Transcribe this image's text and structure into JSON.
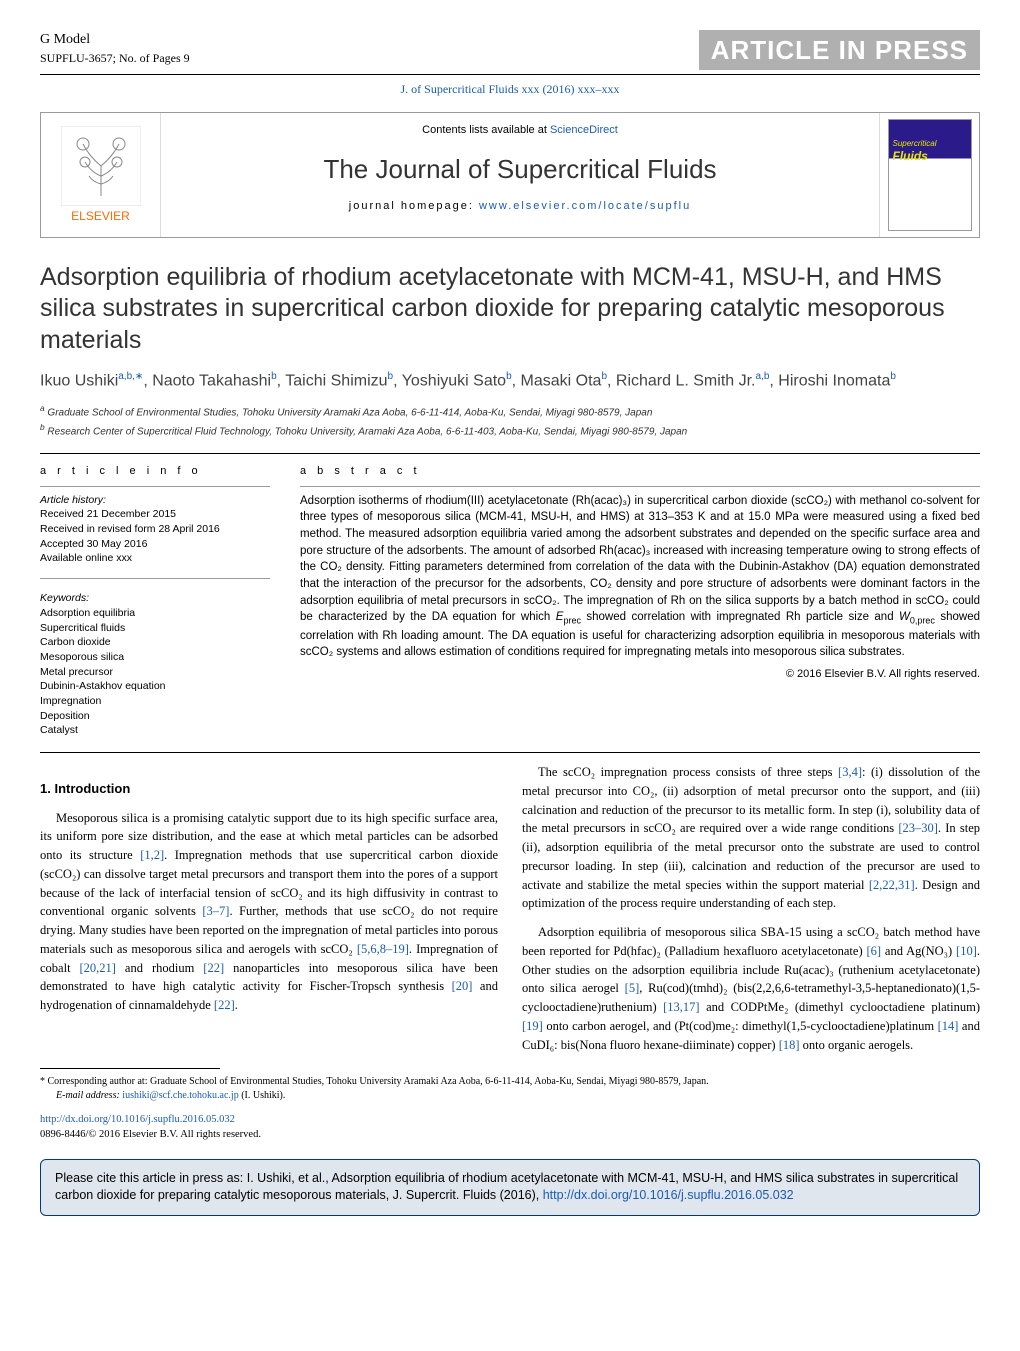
{
  "topbar": {
    "gmodel": "G Model",
    "ref": "SUPFLU-3657;   No. of Pages 9",
    "press": "ARTICLE IN PRESS"
  },
  "ref_line": "J. of Supercritical Fluids xxx (2016) xxx–xxx",
  "header": {
    "contents_prefix": "Contents lists available at ",
    "contents_link": "ScienceDirect",
    "journal_title": "The Journal of Supercritical Fluids",
    "homepage_prefix": "journal homepage: ",
    "homepage_link": "www.elsevier.com/locate/supflu",
    "publisher": "ELSEVIER",
    "cover_line1": "Supercritical",
    "cover_line2": "Fluids"
  },
  "title": "Adsorption equilibria of rhodium acetylacetonate with MCM-41, MSU-H, and HMS silica substrates in supercritical carbon dioxide for preparing catalytic mesoporous materials",
  "authors_html": "Ikuo Ushiki|a,b,*|, Naoto Takahashi|b|, Taichi Shimizu|b|, Yoshiyuki Sato|b|, Masaki Ota|b|, Richard L. Smith Jr.|a,b|, Hiroshi Inomata|b|",
  "affiliations": {
    "a": "Graduate School of Environmental Studies, Tohoku University Aramaki Aza Aoba, 6-6-11-414, Aoba-Ku, Sendai, Miyagi 980-8579, Japan",
    "b": "Research Center of Supercritical Fluid Technology, Tohoku University, Aramaki Aza Aoba, 6-6-11-403, Aoba-Ku, Sendai, Miyagi 980-8579, Japan"
  },
  "article_info": {
    "head": "a r t i c l e   i n f o",
    "history_label": "Article history:",
    "received": "Received 21 December 2015",
    "revised": "Received in revised form 28 April 2016",
    "accepted": "Accepted 30 May 2016",
    "online": "Available online xxx",
    "keywords_label": "Keywords:",
    "keywords": [
      "Adsorption equilibria",
      "Supercritical fluids",
      "Carbon dioxide",
      "Mesoporous silica",
      "Metal precursor",
      "Dubinin-Astakhov equation",
      "Impregnation",
      "Deposition",
      "Catalyst"
    ]
  },
  "abstract": {
    "head": "a b s t r a c t",
    "text": "Adsorption isotherms of rhodium(III) acetylacetonate (Rh(acac)₃) in supercritical carbon dioxide (scCO₂) with methanol co-solvent for three types of mesoporous silica (MCM-41, MSU-H, and HMS) at 313–353 K and at 15.0 MPa were measured using a fixed bed method. The measured adsorption equilibria varied among the adsorbent substrates and depended on the specific surface area and pore structure of the adsorbents. The amount of adsorbed Rh(acac)₃ increased with increasing temperature owing to strong effects of the CO₂ density. Fitting parameters determined from correlation of the data with the Dubinin-Astakhov (DA) equation demonstrated that the interaction of the precursor for the adsorbents, CO₂ density and pore structure of adsorbents were dominant factors in the adsorption equilibria of metal precursors in scCO₂. The impregnation of Rh on the silica supports by a batch method in scCO₂ could be characterized by the DA equation for which Eprec showed correlation with impregnated Rh particle size and W0,prec showed correlation with Rh loading amount. The DA equation is useful for characterizing adsorption equilibria in mesoporous materials with scCO₂ systems and allows estimation of conditions required for impregnating metals into mesoporous silica substrates.",
    "copyright": "© 2016 Elsevier B.V. All rights reserved."
  },
  "section1_head": "1.  Introduction",
  "paragraphs": [
    "Mesoporous silica is a promising catalytic support due to its high specific surface area, its uniform pore size distribution, and the ease at which metal particles can be adsorbed onto its structure [1,2]. Impregnation methods that use supercritical carbon dioxide (scCO₂) can dissolve target metal precursors and transport them into the pores of a support because of the lack of interfacial tension of scCO₂ and its high diffusivity in contrast to conventional organic solvents [3–7]. Further, methods that use scCO₂ do not require drying. Many studies have been reported on the impregnation of metal particles into porous materials such as mesoporous silica and aerogels with scCO₂ [5,6,8–19]. Impregnation of cobalt [20,21] and rhodium [22] nanoparticles into mesoporous silica have been demonstrated to have high catalytic activity for Fischer-Tropsch synthesis [20] and hydrogenation of cinnamaldehyde [22].",
    "The scCO₂ impregnation process consists of three steps [3,4]: (i) dissolution of the metal precursor into CO₂, (ii) adsorption of metal precursor onto the support, and (iii) calcination and reduction of the precursor to its metallic form. In step (i), solubility data of the metal precursors in scCO₂ are required over a wide range conditions [23–30]. In step (ii), adsorption equilibria of the metal precursor onto the substrate are used to control precursor loading. In step (iii), calcination and reduction of the precursor are used to activate and stabilize the metal species within the support material [2,22,31]. Design and optimization of the process require understanding of each step.",
    "Adsorption equilibria of mesoporous silica SBA-15 using a scCO₂ batch method have been reported for Pd(hfac)₂ (Palladium hexafluoro acetylacetonate) [6] and Ag(NO₃) [10]. Other studies on the adsorption equilibria include Ru(acac)₃ (ruthenium acetylacetonate) onto silica aerogel [5], Ru(cod)(tmhd)₂ (bis(2,2,6,6-tetramethyl-3,5-heptanedionato)(1,5-cyclooctadiene)ruthenium) [13,17] and CODPtMe₂ (dimethyl cyclooctadiene platinum) [19] onto carbon aerogel, and (Pt(cod)me₂: dimethyl(1,5-cyclooctadiene)platinum [14] and CuDI₆: bis(Nona fluoro hexane-diiminate) copper) [18] onto organic aerogels."
  ],
  "footnote": {
    "corr": "* Corresponding author at: Graduate School of Environmental Studies, Tohoku University Aramaki Aza Aoba, 6-6-11-414, Aoba-Ku, Sendai, Miyagi 980-8579, Japan.",
    "email_label": "E-mail address: ",
    "email": "iushiki@scf.che.tohoku.ac.jp",
    "email_suffix": " (I. Ushiki)."
  },
  "doi": {
    "link": "http://dx.doi.org/10.1016/j.supflu.2016.05.032",
    "issn": "0896-8446/© 2016 Elsevier B.V. All rights reserved."
  },
  "citebox": {
    "text_prefix": "Please cite this article in press as: I. Ushiki, et al., Adsorption equilibria of rhodium acetylacetonate with MCM-41, MSU-H, and HMS silica substrates in supercritical carbon dioxide for preparing catalytic mesoporous materials, J. Supercrit. Fluids (2016), ",
    "link": "http://dx.doi.org/10.1016/j.supflu.2016.05.032"
  },
  "colors": {
    "link": "#1a5bb8",
    "publisher": "#ff6a00",
    "press_bg": "#b0b0b0",
    "citebox_bg": "#e0e6ee",
    "citebox_border": "#003a80"
  }
}
